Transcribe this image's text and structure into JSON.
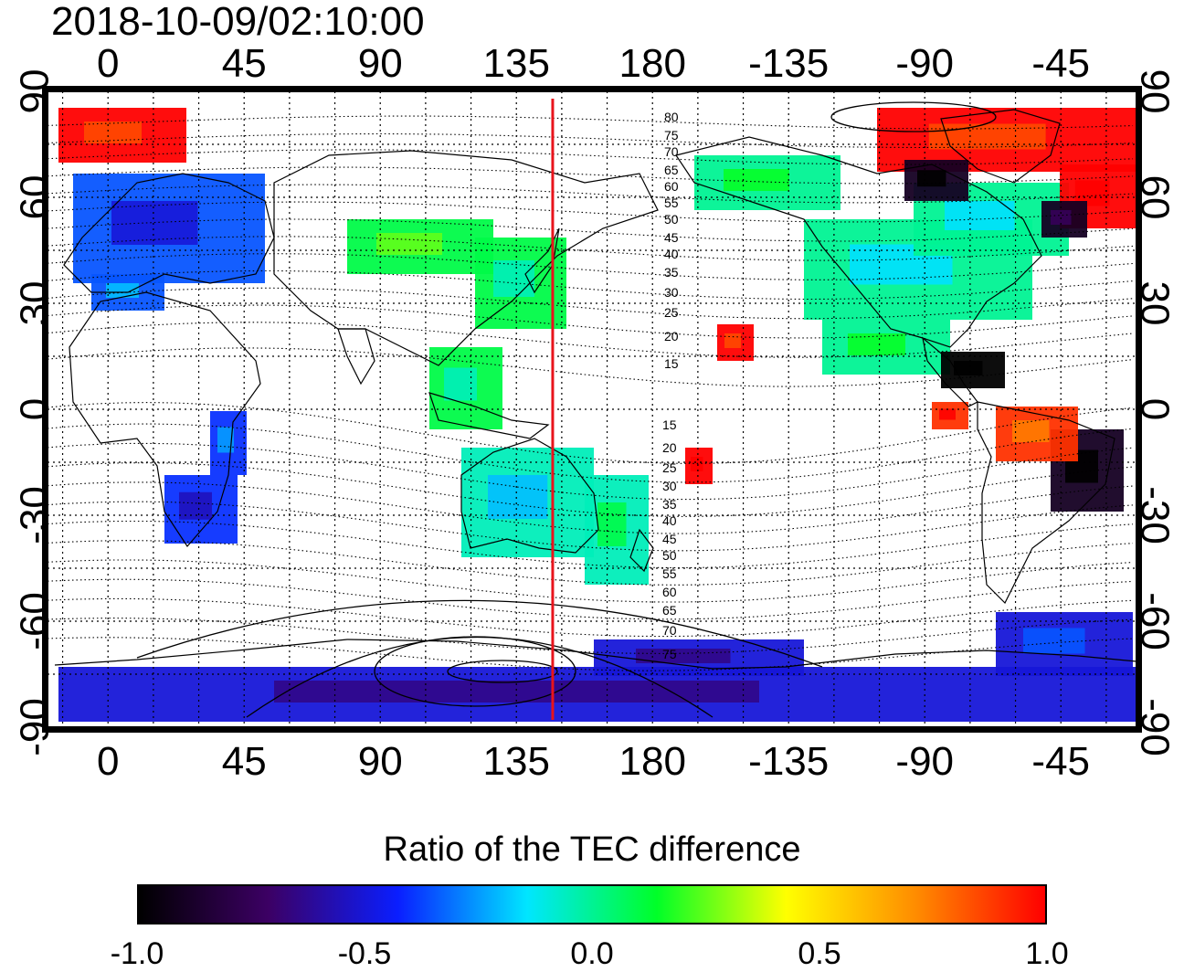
{
  "timestamp": "2018-10-09/02:10:00",
  "map": {
    "projection": "equirectangular, longitude -20 to 340 (center 160)",
    "lon_ticks_top": [
      "0",
      "45",
      "90",
      "135",
      "180",
      "-135",
      "-90",
      "-45"
    ],
    "lon_ticks_bottom": [
      "0",
      "45",
      "90",
      "135",
      "180",
      "-135",
      "-90",
      "-45"
    ],
    "lat_ticks_left": [
      "90",
      "60",
      "30",
      "0",
      "-30",
      "-60",
      "-90"
    ],
    "lat_ticks_right": [
      "90",
      "60",
      "30",
      "0",
      "-30",
      "-60",
      "-90"
    ],
    "reference_meridian_lon": 147,
    "reference_meridian_color": "#e8141c",
    "contour_labels_north": [
      "80",
      "75",
      "70",
      "65",
      "60",
      "55",
      "50",
      "45",
      "40",
      "35",
      "30",
      "25",
      "20",
      "15"
    ],
    "contour_labels_south": [
      "15",
      "20",
      "25",
      "30",
      "35",
      "40",
      "45",
      "50",
      "55",
      "60",
      "65",
      "70",
      "75"
    ]
  },
  "colorbar": {
    "title": "Ratio of the TEC difference",
    "ticks": [
      "-1.0",
      "-0.5",
      "0.0",
      "0.5",
      "1.0"
    ],
    "colors": [
      "#000000",
      "#3c0064",
      "#0a1eff",
      "#00e6ff",
      "#00ff28",
      "#ffff00",
      "#ff8c00",
      "#ff0000"
    ]
  },
  "data_regions": [
    {
      "name": "north-america",
      "value": 0.0
    },
    {
      "name": "greenland-canada-arctic",
      "value": 1.0
    },
    {
      "name": "hudson-bay",
      "value": -0.9
    },
    {
      "name": "caribbean",
      "value": -1.0
    },
    {
      "name": "europe",
      "value": -0.35
    },
    {
      "name": "south-america-east",
      "value": -0.9
    },
    {
      "name": "south-america-north",
      "value": 0.9
    },
    {
      "name": "australia",
      "value": -0.05
    },
    {
      "name": "japan-east-asia",
      "value": 0.1
    },
    {
      "name": "antarctica",
      "value": -0.5
    },
    {
      "name": "pacific-hawaii",
      "value": 1.0
    },
    {
      "name": "southern-africa",
      "value": -0.4
    }
  ]
}
